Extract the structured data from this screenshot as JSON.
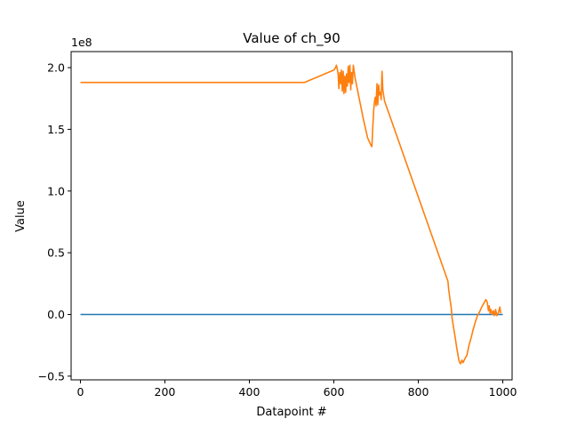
{
  "chart_data": {
    "type": "line",
    "title": "Value of ch_90",
    "xlabel": "Datapoint #",
    "ylabel": "Value",
    "y_offset_label": "1e8",
    "xlim": [
      -22,
      1022
    ],
    "ylim": [
      -0.53,
      2.13
    ],
    "x_ticks": [
      0,
      200,
      400,
      600,
      800,
      1000
    ],
    "x_tick_labels": [
      "0",
      "200",
      "400",
      "600",
      "800",
      "1000"
    ],
    "y_ticks": [
      -0.5,
      0.0,
      0.5,
      1.0,
      1.5,
      2.0
    ],
    "y_tick_labels": [
      "−0.5",
      "0.0",
      "0.5",
      "1.0",
      "1.5",
      "2.0"
    ],
    "grid": false,
    "series": [
      {
        "color": "#1f77b4",
        "x": [
          0,
          1000
        ],
        "y": [
          0.0,
          0.0
        ]
      },
      {
        "color": "#ff7f0e",
        "x": [
          0,
          530,
          600,
          604,
          606,
          608,
          610,
          612,
          614,
          616,
          618,
          620,
          622,
          624,
          626,
          628,
          630,
          632,
          634,
          636,
          638,
          640,
          642,
          644,
          646,
          650,
          660,
          670,
          680,
          688,
          690,
          692,
          694,
          696,
          698,
          700,
          702,
          704,
          706,
          708,
          710,
          712,
          714,
          716,
          720,
          870,
          872,
          875,
          878,
          880,
          883,
          886,
          888,
          890,
          892,
          894,
          896,
          898,
          900,
          903,
          906,
          910,
          915,
          920,
          925,
          930,
          935,
          940,
          945,
          950,
          955,
          960,
          963,
          966,
          968,
          970,
          972,
          975,
          978,
          980,
          983,
          986,
          990,
          993,
          995
        ],
        "y": [
          1.88,
          1.88,
          1.98,
          2.0,
          2.02,
          1.99,
          1.95,
          1.83,
          1.96,
          1.87,
          1.98,
          1.81,
          1.97,
          1.79,
          1.93,
          1.8,
          1.95,
          1.85,
          2.01,
          1.88,
          2.02,
          1.82,
          1.96,
          1.87,
          2.02,
          1.92,
          1.75,
          1.58,
          1.43,
          1.37,
          1.36,
          1.5,
          1.64,
          1.72,
          1.76,
          1.69,
          1.87,
          1.7,
          1.86,
          1.78,
          1.8,
          1.74,
          1.97,
          1.82,
          1.73,
          0.27,
          0.2,
          0.12,
          0.05,
          -0.03,
          -0.1,
          -0.16,
          -0.2,
          -0.25,
          -0.29,
          -0.33,
          -0.37,
          -0.39,
          -0.4,
          -0.37,
          -0.39,
          -0.36,
          -0.33,
          -0.25,
          -0.19,
          -0.12,
          -0.06,
          -0.01,
          0.02,
          0.06,
          0.09,
          0.12,
          0.1,
          0.03,
          0.07,
          0.01,
          0.04,
          0.0,
          0.03,
          -0.01,
          0.04,
          -0.01,
          0.02,
          0.06,
          0.01
        ]
      }
    ]
  }
}
